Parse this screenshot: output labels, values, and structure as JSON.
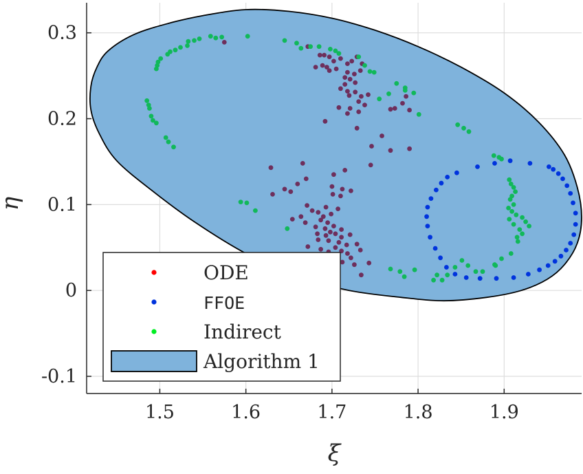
{
  "chart_data": {
    "type": "scatter",
    "xlabel": "ξ",
    "ylabel": "η",
    "xlim": [
      1.415,
      1.99
    ],
    "ylim": [
      -0.12,
      0.335
    ],
    "x_ticks": [
      1.5,
      1.6,
      1.7,
      1.8,
      1.9
    ],
    "x_tick_labels": [
      "1.5",
      "1.6",
      "1.7",
      "1.8",
      "1.9"
    ],
    "y_ticks": [
      -0.1,
      0,
      0.1,
      0.2,
      0.3
    ],
    "y_tick_labels": [
      "-0.1",
      "0",
      "0.1",
      "0.2",
      "0.3"
    ],
    "grid": true,
    "legend_position": "bottom-left",
    "colors": {
      "ode": "#ff0000",
      "ffoe": "#0033dd",
      "indirect": "#00ee22",
      "indirect_on_region": "#11b85a",
      "ode_on_region": "#6e2f5c",
      "region_fill": "#7fb3dc",
      "region_edge": "#000000",
      "axes": "#262626",
      "grid": "#dddddd"
    },
    "region": {
      "name": "Algorithm 1",
      "boundary": [
        [
          1.44,
          0.279
        ],
        [
          1.47,
          0.298
        ],
        [
          1.51,
          0.311
        ],
        [
          1.55,
          0.32
        ],
        [
          1.6,
          0.327
        ],
        [
          1.65,
          0.325
        ],
        [
          1.7,
          0.317
        ],
        [
          1.75,
          0.303
        ],
        [
          1.8,
          0.284
        ],
        [
          1.85,
          0.26
        ],
        [
          1.9,
          0.23
        ],
        [
          1.94,
          0.196
        ],
        [
          1.97,
          0.158
        ],
        [
          1.985,
          0.12
        ],
        [
          1.99,
          0.085
        ],
        [
          1.985,
          0.055
        ],
        [
          1.97,
          0.03
        ],
        [
          1.95,
          0.013
        ],
        [
          1.92,
          0.0
        ],
        [
          1.88,
          -0.008
        ],
        [
          1.83,
          -0.012
        ],
        [
          1.78,
          -0.008
        ],
        [
          1.72,
          0.0
        ],
        [
          1.66,
          0.016
        ],
        [
          1.6,
          0.043
        ],
        [
          1.54,
          0.08
        ],
        [
          1.49,
          0.117
        ],
        [
          1.45,
          0.151
        ],
        [
          1.43,
          0.182
        ],
        [
          1.42,
          0.21
        ],
        [
          1.42,
          0.238
        ],
        [
          1.427,
          0.26
        ]
      ]
    },
    "series": [
      {
        "name": "ODE",
        "points": [
          [
            1.575,
            0.289
          ],
          [
            1.672,
            0.284
          ],
          [
            1.686,
            0.274
          ],
          [
            1.691,
            0.274
          ],
          [
            1.697,
            0.272
          ],
          [
            1.702,
            0.267
          ],
          [
            1.71,
            0.27
          ],
          [
            1.718,
            0.264
          ],
          [
            1.723,
            0.267
          ],
          [
            1.729,
            0.272
          ],
          [
            1.735,
            0.264
          ],
          [
            1.689,
            0.262
          ],
          [
            1.694,
            0.26
          ],
          [
            1.681,
            0.26
          ],
          [
            1.697,
            0.256
          ],
          [
            1.705,
            0.258
          ],
          [
            1.718,
            0.254
          ],
          [
            1.726,
            0.252
          ],
          [
            1.733,
            0.256
          ],
          [
            1.715,
            0.248
          ],
          [
            1.721,
            0.246
          ],
          [
            1.727,
            0.242
          ],
          [
            1.715,
            0.24
          ],
          [
            1.71,
            0.235
          ],
          [
            1.718,
            0.232
          ],
          [
            1.727,
            0.231
          ],
          [
            1.734,
            0.226
          ],
          [
            1.742,
            0.228
          ],
          [
            1.72,
            0.227
          ],
          [
            1.731,
            0.22
          ],
          [
            1.738,
            0.216
          ],
          [
            1.708,
            0.213
          ],
          [
            1.721,
            0.212
          ],
          [
            1.731,
            0.208
          ],
          [
            1.718,
            0.206
          ],
          [
            1.786,
            0.226
          ],
          [
            1.782,
            0.218
          ],
          [
            1.768,
            0.211
          ],
          [
            1.773,
            0.212
          ],
          [
            1.79,
            0.21
          ],
          [
            1.692,
            0.197
          ],
          [
            1.729,
            0.189
          ],
          [
            1.758,
            0.18
          ],
          [
            1.746,
            0.168
          ],
          [
            1.79,
            0.165
          ],
          [
            1.768,
            0.163
          ],
          [
            1.629,
            0.143
          ],
          [
            1.666,
            0.148
          ],
          [
            1.702,
            0.135
          ],
          [
            1.715,
            0.14
          ],
          [
            1.745,
            0.146
          ],
          [
            1.67,
            0.13
          ],
          [
            1.645,
            0.118
          ],
          [
            1.631,
            0.112
          ],
          [
            1.652,
            0.115
          ],
          [
            1.66,
            0.124
          ],
          [
            1.7,
            0.121
          ],
          [
            1.712,
            0.118
          ],
          [
            1.722,
            0.116
          ],
          [
            1.701,
            0.112
          ],
          [
            1.71,
            0.11
          ],
          [
            1.671,
            0.099
          ],
          [
            1.677,
            0.093
          ],
          [
            1.693,
            0.097
          ],
          [
            1.707,
            0.095
          ],
          [
            1.684,
            0.091
          ],
          [
            1.69,
            0.086
          ],
          [
            1.699,
            0.089
          ],
          [
            1.664,
            0.086
          ],
          [
            1.654,
            0.083
          ],
          [
            1.669,
            0.079
          ],
          [
            1.687,
            0.082
          ],
          [
            1.695,
            0.079
          ],
          [
            1.702,
            0.075
          ],
          [
            1.681,
            0.074
          ],
          [
            1.692,
            0.072
          ],
          [
            1.711,
            0.071
          ],
          [
            1.698,
            0.068
          ],
          [
            1.704,
            0.066
          ],
          [
            1.683,
            0.066
          ],
          [
            1.693,
            0.064
          ],
          [
            1.721,
            0.065
          ],
          [
            1.711,
            0.062
          ],
          [
            1.684,
            0.059
          ],
          [
            1.696,
            0.058
          ],
          [
            1.708,
            0.056
          ],
          [
            1.717,
            0.053
          ],
          [
            1.729,
            0.054
          ],
          [
            1.704,
            0.05
          ],
          [
            1.672,
            0.051
          ],
          [
            1.687,
            0.048
          ],
          [
            1.696,
            0.045
          ],
          [
            1.711,
            0.046
          ],
          [
            1.718,
            0.043
          ],
          [
            1.704,
            0.041
          ],
          [
            1.722,
            0.038
          ],
          [
            1.733,
            0.047
          ],
          [
            1.686,
            0.036
          ],
          [
            1.699,
            0.032
          ],
          [
            1.712,
            0.033
          ],
          [
            1.726,
            0.03
          ],
          [
            1.743,
            0.032
          ],
          [
            1.703,
            0.026
          ],
          [
            1.734,
            0.018
          ]
        ]
      },
      {
        "name": "FFOE",
        "points": [
          [
            1.889,
            0.148
          ],
          [
            1.907,
            0.151
          ],
          [
            1.93,
            0.148
          ],
          [
            1.952,
            0.144
          ],
          [
            1.957,
            0.141
          ],
          [
            1.963,
            0.136
          ],
          [
            1.968,
            0.13
          ],
          [
            1.973,
            0.122
          ],
          [
            1.977,
            0.113
          ],
          [
            1.98,
            0.102
          ],
          [
            1.983,
            0.09
          ],
          [
            1.983,
            0.077
          ],
          [
            1.981,
            0.065
          ],
          [
            1.977,
            0.055
          ],
          [
            1.972,
            0.047
          ],
          [
            1.966,
            0.04
          ],
          [
            1.959,
            0.034
          ],
          [
            1.951,
            0.029
          ],
          [
            1.941,
            0.024
          ],
          [
            1.928,
            0.019
          ],
          [
            1.911,
            0.015
          ],
          [
            1.891,
            0.014
          ],
          [
            1.872,
            0.014
          ],
          [
            1.856,
            0.015
          ],
          [
            1.843,
            0.019
          ],
          [
            1.833,
            0.027
          ],
          [
            1.826,
            0.038
          ],
          [
            1.82,
            0.049
          ],
          [
            1.814,
            0.062
          ],
          [
            1.811,
            0.075
          ],
          [
            1.81,
            0.086
          ],
          [
            1.811,
            0.097
          ],
          [
            1.815,
            0.107
          ],
          [
            1.821,
            0.117
          ],
          [
            1.827,
            0.125
          ],
          [
            1.834,
            0.132
          ],
          [
            1.845,
            0.137
          ],
          [
            1.869,
            0.144
          ]
        ]
      },
      {
        "name": "Indirect",
        "points": [
          [
            1.559,
            0.296
          ],
          [
            1.565,
            0.294
          ],
          [
            1.572,
            0.295
          ],
          [
            1.546,
            0.293
          ],
          [
            1.54,
            0.291
          ],
          [
            1.533,
            0.29
          ],
          [
            1.602,
            0.296
          ],
          [
            1.524,
            0.283
          ],
          [
            1.532,
            0.285
          ],
          [
            1.518,
            0.28
          ],
          [
            1.512,
            0.278
          ],
          [
            1.509,
            0.275
          ],
          [
            1.501,
            0.27
          ],
          [
            1.498,
            0.266
          ],
          [
            1.497,
            0.262
          ],
          [
            1.496,
            0.258
          ],
          [
            1.645,
            0.291
          ],
          [
            1.659,
            0.288
          ],
          [
            1.664,
            0.282
          ],
          [
            1.675,
            0.284
          ],
          [
            1.685,
            0.284
          ],
          [
            1.698,
            0.281
          ],
          [
            1.704,
            0.279
          ],
          [
            1.708,
            0.276
          ],
          [
            1.731,
            0.272
          ],
          [
            1.738,
            0.262
          ],
          [
            1.744,
            0.255
          ],
          [
            1.749,
            0.254
          ],
          [
            1.775,
            0.241
          ],
          [
            1.785,
            0.236
          ],
          [
            1.795,
            0.23
          ],
          [
            1.766,
            0.229
          ],
          [
            1.785,
            0.233
          ],
          [
            1.801,
            0.205
          ],
          [
            1.755,
            0.223
          ],
          [
            1.485,
            0.221
          ],
          [
            1.487,
            0.216
          ],
          [
            1.488,
            0.212
          ],
          [
            1.49,
            0.203
          ],
          [
            1.492,
            0.198
          ],
          [
            1.496,
            0.195
          ],
          [
            1.507,
            0.178
          ],
          [
            1.51,
            0.173
          ],
          [
            1.516,
            0.167
          ],
          [
            1.846,
            0.193
          ],
          [
            1.853,
            0.189
          ],
          [
            1.859,
            0.185
          ],
          [
            1.888,
            0.157
          ],
          [
            1.894,
            0.155
          ],
          [
            1.897,
            0.153
          ],
          [
            1.906,
            0.129
          ],
          [
            1.908,
            0.124
          ],
          [
            1.911,
            0.12
          ],
          [
            1.913,
            0.115
          ],
          [
            1.909,
            0.11
          ],
          [
            1.907,
            0.106
          ],
          [
            1.911,
            0.1
          ],
          [
            1.905,
            0.096
          ],
          [
            1.909,
            0.092
          ],
          [
            1.914,
            0.088
          ],
          [
            1.906,
            0.083
          ],
          [
            1.911,
            0.077
          ],
          [
            1.921,
            0.085
          ],
          [
            1.925,
            0.08
          ],
          [
            1.929,
            0.075
          ],
          [
            1.918,
            0.071
          ],
          [
            1.921,
            0.066
          ],
          [
            1.915,
            0.062
          ],
          [
            1.916,
            0.057
          ],
          [
            1.908,
            0.043
          ],
          [
            1.897,
            0.037
          ],
          [
            1.89,
            0.029
          ],
          [
            1.889,
            0.03
          ],
          [
            1.875,
            0.022
          ],
          [
            1.867,
            0.022
          ],
          [
            1.858,
            0.029
          ],
          [
            1.851,
            0.035
          ],
          [
            1.843,
            0.027
          ],
          [
            1.834,
            0.018
          ],
          [
            1.594,
            0.103
          ],
          [
            1.601,
            0.102
          ],
          [
            1.611,
            0.093
          ],
          [
            1.648,
            0.072
          ],
          [
            1.768,
            0.025
          ],
          [
            1.779,
            0.022
          ],
          [
            1.784,
            0.016
          ],
          [
            1.796,
            0.024
          ],
          [
            1.818,
            0.012
          ],
          [
            1.828,
            0.012
          ],
          [
            1.822,
            0.018
          ]
        ]
      }
    ],
    "legend": {
      "entries": [
        {
          "label": "ODE",
          "symbol": "dot",
          "color": "#ff0000"
        },
        {
          "label": "FFOE",
          "symbol": "dot",
          "color": "#0033dd"
        },
        {
          "label": "Indirect",
          "symbol": "dot",
          "color": "#00ee22"
        },
        {
          "label": "Algorithm 1",
          "symbol": "patch",
          "color": "#7fb3dc"
        }
      ]
    }
  }
}
